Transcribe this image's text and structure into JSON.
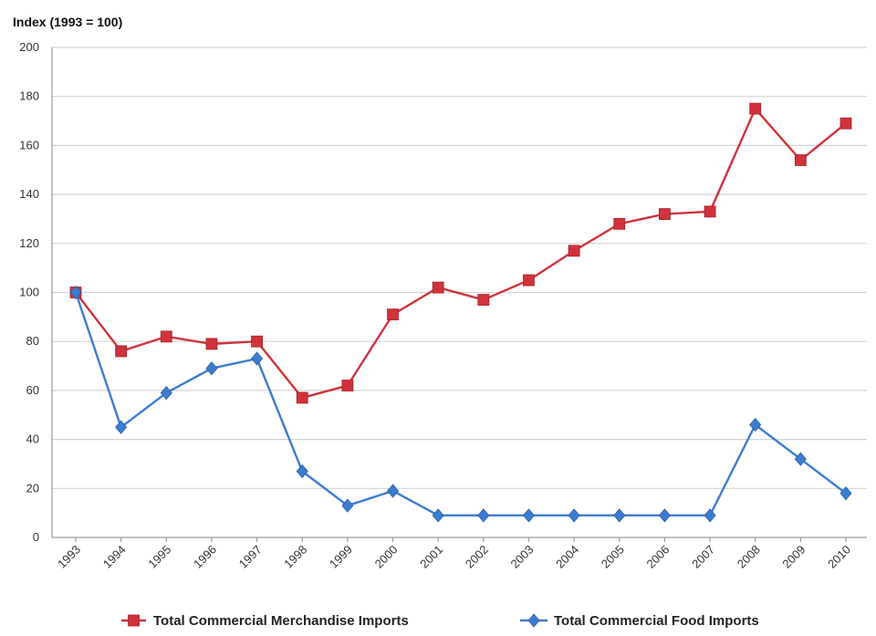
{
  "chart_data": {
    "type": "line",
    "ylabel": "Index (1993 = 100)",
    "ylim": [
      0,
      200
    ],
    "yticks": [
      0,
      20,
      40,
      60,
      80,
      100,
      120,
      140,
      160,
      180,
      200
    ],
    "categories": [
      "1993",
      "1994",
      "1995",
      "1996",
      "1997",
      "1998",
      "1999",
      "2000",
      "2001",
      "2002",
      "2003",
      "2004",
      "2005",
      "2006",
      "2007",
      "2008",
      "2009",
      "2010"
    ],
    "grid": true,
    "legend_position": "bottom",
    "series": [
      {
        "name": "Total Commercial Merchandise Imports",
        "color": "#d0323b",
        "marker": "square",
        "values": [
          100,
          76,
          82,
          79,
          80,
          57,
          62,
          91,
          102,
          97,
          105,
          117,
          128,
          132,
          133,
          175,
          154,
          169
        ]
      },
      {
        "name": "Total Commercial Food Imports",
        "color": "#3b7cd0",
        "marker": "diamond",
        "values": [
          100,
          45,
          59,
          69,
          73,
          27,
          13,
          19,
          9,
          9,
          9,
          9,
          9,
          9,
          9,
          46,
          32,
          18
        ]
      }
    ]
  }
}
